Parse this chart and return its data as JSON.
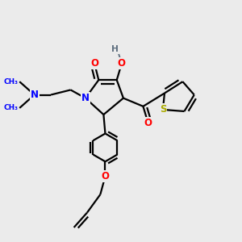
{
  "bg_color": "#ebebeb",
  "atom_colors": {
    "N": "#0000ff",
    "O": "#ff0000",
    "S": "#aaaa00",
    "H": "#607080",
    "C": "#000000"
  },
  "line_width": 1.6,
  "font_size": 8.5
}
